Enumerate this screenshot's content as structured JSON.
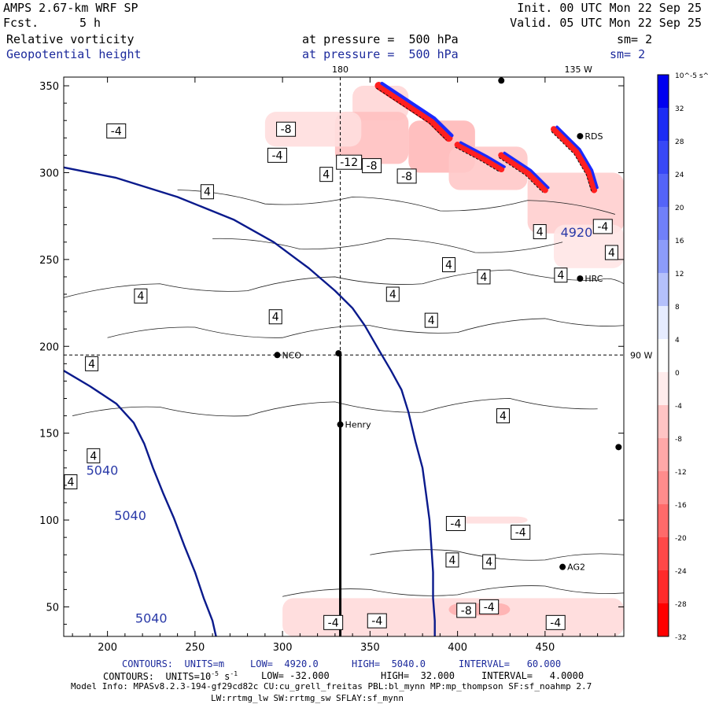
{
  "header": {
    "model": "AMPS 2.67-km WRF SP",
    "fcst_label": "Fcst.",
    "fcst_value": "5 h",
    "init": "Init. 00 UTC Mon 22 Sep 25",
    "valid": "Valid. 05 UTC Mon 22 Sep 25",
    "field1": "Relative vorticity",
    "field1_level": "at pressure =  500 hPa",
    "field1_sm": "sm= 2",
    "field2": "Geopotential height",
    "field2_level": "at pressure =  500 hPa",
    "field2_sm": "sm= 2"
  },
  "colors": {
    "height_contour": "#0a1a8c",
    "vort_positive": "#1a2aff",
    "vort_negative": "#ff2020",
    "header_blue": "#1c2a9c"
  },
  "chart_data": {
    "type": "contour",
    "title": "Relative vorticity / Geopotential height at 500 hPa",
    "xlim": [
      175,
      495
    ],
    "ylim": [
      33,
      355
    ],
    "x_ticks": [
      200,
      250,
      300,
      350,
      400,
      450
    ],
    "y_ticks": [
      50,
      100,
      150,
      200,
      250,
      300,
      350
    ],
    "meridian_labels": [
      {
        "text": "180",
        "x": 333,
        "edge": "top"
      },
      {
        "text": "135 W",
        "x": 469,
        "edge": "top"
      },
      {
        "text": "90 W",
        "y": 195,
        "edge": "right"
      }
    ],
    "crosshair": {
      "x": 333,
      "y": 195
    },
    "cross_section": {
      "x": 333,
      "y_from": 195,
      "y_to": 33
    },
    "stations": [
      {
        "name": "NCO",
        "x": 297,
        "y": 195
      },
      {
        "name": "Henry",
        "x": 333,
        "y": 155
      },
      {
        "name": "HRC",
        "x": 470,
        "y": 239
      },
      {
        "name": "AG2",
        "x": 460,
        "y": 73
      },
      {
        "name": "RDS",
        "x": 470,
        "y": 321
      },
      {
        "name": "",
        "x": 332,
        "y": 196
      },
      {
        "name": "",
        "x": 425,
        "y": 353
      },
      {
        "name": "",
        "x": 492,
        "y": 142
      }
    ],
    "height_contours": {
      "units": "m",
      "low": 4920,
      "high": 5040,
      "interval": 60,
      "lines": [
        {
          "level": 4920,
          "points": [
            [
              175,
              303
            ],
            [
              205,
              297
            ],
            [
              240,
              286
            ],
            [
              272,
              273
            ],
            [
              295,
              260
            ],
            [
              315,
              245
            ],
            [
              330,
              232
            ],
            [
              340,
              222
            ],
            [
              347,
              212
            ],
            [
              355,
              198
            ],
            [
              362,
              186
            ],
            [
              368,
              175
            ],
            [
              372,
              162
            ],
            [
              376,
              145
            ],
            [
              380,
              130
            ],
            [
              382,
              115
            ],
            [
              384,
              100
            ],
            [
              385,
              85
            ],
            [
              386,
              70
            ],
            [
              386,
              55
            ],
            [
              387,
              42
            ],
            [
              387,
              33
            ]
          ]
        },
        {
          "level": 5040,
          "points": [
            [
              175,
              186
            ],
            [
              190,
              177
            ],
            [
              205,
              167
            ],
            [
              215,
              156
            ],
            [
              221,
              144
            ],
            [
              226,
              130
            ],
            [
              232,
              115
            ],
            [
              238,
              101
            ],
            [
              244,
              85
            ],
            [
              250,
              70
            ],
            [
              255,
              55
            ],
            [
              260,
              42
            ],
            [
              262,
              33
            ]
          ]
        }
      ],
      "labels": [
        {
          "text": "4920",
          "x": 468,
          "y": 263
        },
        {
          "text": "5040",
          "x": 197,
          "y": 126
        },
        {
          "text": "5040",
          "x": 213,
          "y": 100
        },
        {
          "text": "5040",
          "x": 225,
          "y": 41
        }
      ]
    },
    "vorticity": {
      "units": "10^-5 s^-1",
      "low": -32.0,
      "high": 32.0,
      "interval": 4.0,
      "contour_labels": [
        {
          "text": "-4",
          "x": 205,
          "y": 324
        },
        {
          "text": "-8",
          "x": 302,
          "y": 325
        },
        {
          "text": "-4",
          "x": 297,
          "y": 310
        },
        {
          "text": "4",
          "x": 325,
          "y": 299
        },
        {
          "text": "-12",
          "x": 338,
          "y": 306
        },
        {
          "text": "-8",
          "x": 351,
          "y": 304
        },
        {
          "text": "-8",
          "x": 371,
          "y": 298
        },
        {
          "text": "4",
          "x": 257,
          "y": 289
        },
        {
          "text": "-4",
          "x": 483,
          "y": 269
        },
        {
          "text": "4",
          "x": 447,
          "y": 266
        },
        {
          "text": "4",
          "x": 488,
          "y": 254
        },
        {
          "text": "4",
          "x": 395,
          "y": 247
        },
        {
          "text": "4",
          "x": 415,
          "y": 240
        },
        {
          "text": "4",
          "x": 459,
          "y": 241
        },
        {
          "text": "4",
          "x": 219,
          "y": 229
        },
        {
          "text": "4",
          "x": 363,
          "y": 230
        },
        {
          "text": "4",
          "x": 296,
          "y": 217
        },
        {
          "text": "4",
          "x": 385,
          "y": 215
        },
        {
          "text": "4",
          "x": 191,
          "y": 190
        },
        {
          "text": "4",
          "x": 426,
          "y": 160
        },
        {
          "text": "4",
          "x": 192,
          "y": 137
        },
        {
          "text": "4",
          "x": 179,
          "y": 122
        },
        {
          "text": "-4",
          "x": 399,
          "y": 98
        },
        {
          "text": "-4",
          "x": 436,
          "y": 93
        },
        {
          "text": "4",
          "x": 397,
          "y": 77
        },
        {
          "text": "4",
          "x": 418,
          "y": 76
        },
        {
          "text": "-8",
          "x": 405,
          "y": 48
        },
        {
          "text": "-4",
          "x": 418,
          "y": 50
        },
        {
          "text": "-4",
          "x": 354,
          "y": 42
        },
        {
          "text": "-4",
          "x": 329,
          "y": 41
        },
        {
          "text": "-4",
          "x": 456,
          "y": 41
        }
      ]
    },
    "colorbar": {
      "unit_label": "10^-5 s^-1",
      "ticks": [
        32,
        28,
        24,
        20,
        16,
        12,
        8,
        4,
        0,
        -4,
        -8,
        -12,
        -16,
        -20,
        -24,
        -28,
        -32
      ],
      "colors": [
        "#0000f0",
        "#1c2cf4",
        "#3848f6",
        "#5464f8",
        "#7080f9",
        "#8c9cfa",
        "#b4c0fb",
        "#e6ecff",
        "#ffffff",
        "#ffecec",
        "#ffc4c4",
        "#ffa8a8",
        "#ff8c8c",
        "#ff6a6a",
        "#ff4848",
        "#ff2a2a",
        "#ff0000"
      ]
    }
  },
  "footer": {
    "line1_prefix": "CONTOURS:  UNITS=m",
    "line1_low": "LOW=  4920.0",
    "line1_high": "HIGH=  5040.0",
    "line1_interval": "INTERVAL=   60.000",
    "line2_prefix": "CONTOURS:  UNITS=10",
    "line2_exp": "-5",
    "line2_unit": " s",
    "line2_exp2": "-1",
    "line2_low": "LOW= -32.000",
    "line2_high": "HIGH=  32.000",
    "line2_interval": "INTERVAL=   4.0000",
    "model_info": "Model Info: MPASv8.2.3-194-gf29cd82c CU:cu_grell_freitas PBL:bl_mynn MP:mp_thompson SF:sf_noahmp 2.7",
    "model_info2": "LW:rrtmg_lw SW:rrtmg_sw SFLAY:sf_mynn"
  }
}
